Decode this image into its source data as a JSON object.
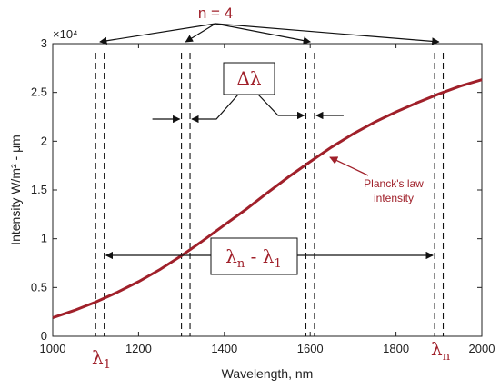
{
  "colors": {
    "curve": "#a0202a",
    "annotation_text": "#a0202a",
    "axis": "#222222",
    "lines": "#111111"
  },
  "chart_data": {
    "type": "line",
    "title": "",
    "xlabel": "Wavelength, nm",
    "ylabel": "Intensity W/m² - μm",
    "xlim": [
      1000,
      2000
    ],
    "ylim": [
      0,
      30000
    ],
    "x_ticks": [
      1000,
      1200,
      1400,
      1600,
      1800,
      2000
    ],
    "y_ticks": [
      0,
      5000,
      10000,
      15000,
      20000,
      25000,
      30000
    ],
    "y_tick_labels": [
      "0",
      "0.5",
      "1",
      "1.5",
      "2",
      "2.5",
      "3"
    ],
    "y_exponent_label": "×10⁴",
    "grid": false,
    "series": [
      {
        "name": "",
        "x": [
          1000,
          1050,
          1100,
          1150,
          1200,
          1250,
          1300,
          1350,
          1400,
          1450,
          1500,
          1550,
          1600,
          1650,
          1700,
          1750,
          1800,
          1850,
          1900,
          1950,
          2000
        ],
        "y": [
          1900,
          2650,
          3500,
          4500,
          5600,
          6850,
          8250,
          9800,
          11400,
          13000,
          14700,
          16350,
          17900,
          19400,
          20750,
          21950,
          23000,
          23950,
          24850,
          25650,
          26300
        ]
      }
    ],
    "dashed_lines_x": [
      1100,
      1120,
      1300,
      1320,
      1590,
      1610,
      1890,
      1910
    ],
    "annotations": {
      "n_label": "n = 4",
      "delta_lambda": "Δλ",
      "lambda_1_symbol": "λ",
      "lambda_1_sub": "1",
      "lambda_n_symbol": "λ",
      "lambda_n_sub": "n",
      "range_label_lambda": "λ",
      "range_label_sub_n": "n",
      "range_label_dash": " - ",
      "range_label_sub_1": "1",
      "planck_line1": "Planck's law",
      "planck_line2": "intensity"
    }
  }
}
